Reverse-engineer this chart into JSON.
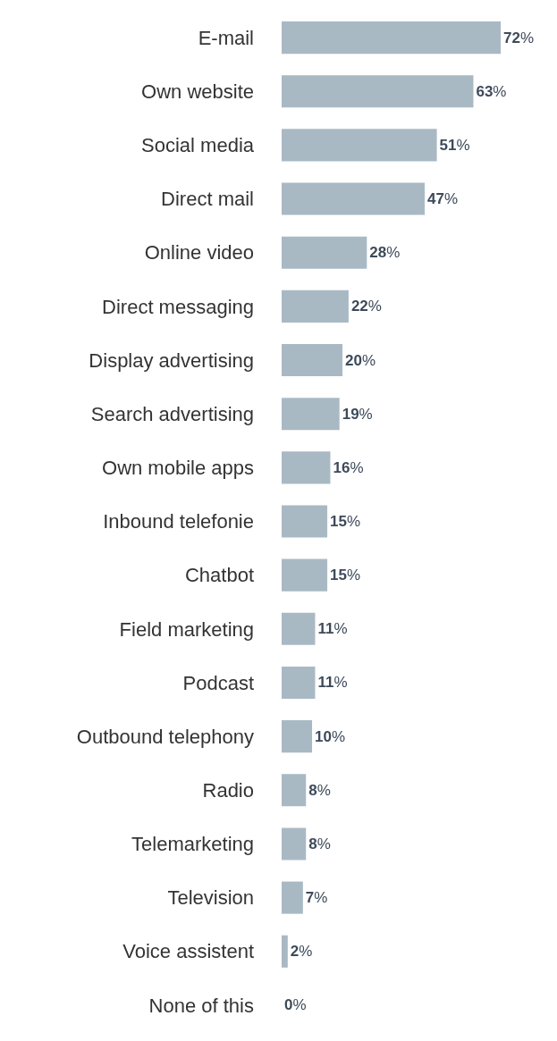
{
  "chart_data": {
    "type": "bar",
    "orientation": "horizontal",
    "categories": [
      "E-mail",
      "Own website",
      "Social media",
      "Direct mail",
      "Online video",
      "Direct messaging",
      "Display advertising",
      "Search advertising",
      "Own mobile apps",
      "Inbound telefonie",
      "Chatbot",
      "Field marketing",
      "Podcast",
      "Outbound telephony",
      "Radio",
      "Telemarketing",
      "Television",
      "Voice assistent",
      "None of this"
    ],
    "values": [
      72,
      63,
      51,
      47,
      28,
      22,
      20,
      19,
      16,
      15,
      15,
      11,
      11,
      10,
      8,
      8,
      7,
      2,
      0
    ],
    "value_labels": [
      "72%",
      "63%",
      "51%",
      "47%",
      "28%",
      "22%",
      "20%",
      "19%",
      "16%",
      "15%",
      "15%",
      "11%",
      "11%",
      "10%",
      "8%",
      "8%",
      "7%",
      "2%",
      "0%"
    ],
    "color": "#a9b9c4",
    "tick_labels": "y"
  }
}
